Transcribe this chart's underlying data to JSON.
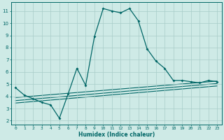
{
  "xlabel": "Humidex (Indice chaleur)",
  "bg_color": "#ceeae6",
  "grid_color": "#a8ccc8",
  "line_color": "#006666",
  "xlim": [
    -0.5,
    23.5
  ],
  "ylim": [
    1.7,
    11.7
  ],
  "xticks": [
    0,
    1,
    2,
    3,
    4,
    5,
    6,
    7,
    8,
    9,
    10,
    11,
    12,
    13,
    14,
    15,
    16,
    17,
    18,
    19,
    20,
    21,
    22,
    23
  ],
  "yticks": [
    2,
    3,
    4,
    5,
    6,
    7,
    8,
    9,
    10,
    11
  ],
  "main_x": [
    0,
    1,
    2,
    3,
    4,
    5,
    6,
    7,
    8,
    9,
    10,
    11,
    12,
    13,
    14,
    15,
    16,
    17,
    18,
    19,
    20,
    21,
    22,
    23
  ],
  "main_y": [
    4.7,
    4.1,
    3.8,
    3.5,
    3.3,
    2.2,
    4.2,
    6.3,
    4.9,
    8.9,
    11.2,
    11.0,
    10.85,
    11.2,
    10.2,
    7.9,
    6.9,
    6.3,
    5.3,
    5.3,
    5.2,
    5.1,
    5.3,
    5.2
  ],
  "line1_x": [
    0,
    23
  ],
  "line1_y": [
    3.9,
    5.25
  ],
  "line2_x": [
    0,
    23
  ],
  "line2_y": [
    3.65,
    5.05
  ],
  "line3_x": [
    0,
    23
  ],
  "line3_y": [
    3.45,
    4.85
  ]
}
